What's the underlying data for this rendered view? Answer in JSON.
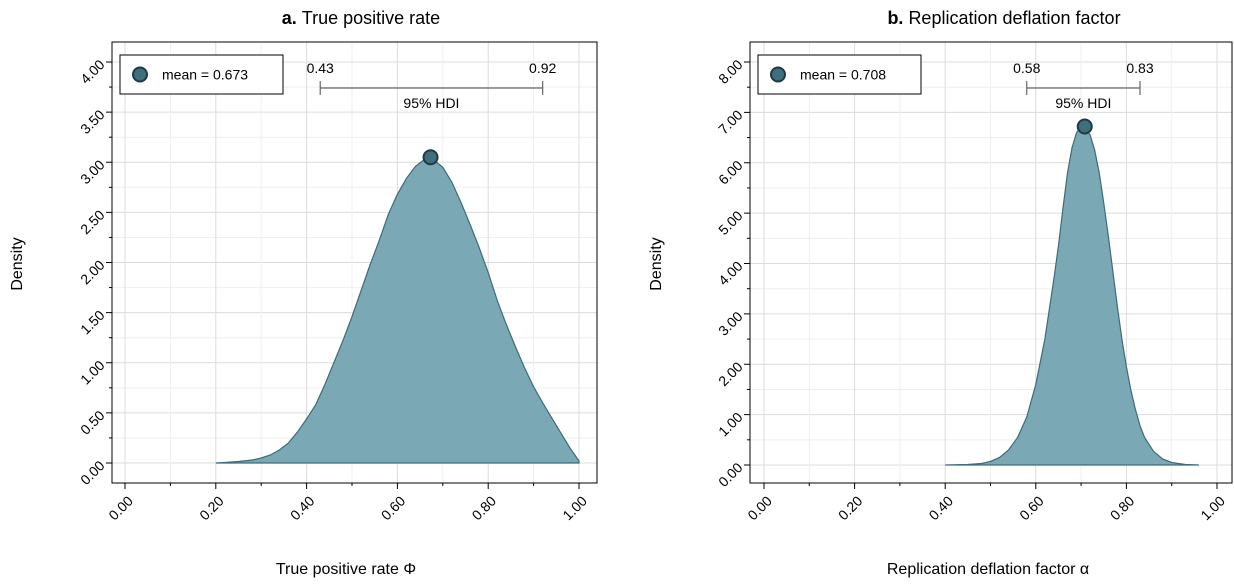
{
  "chart_data": [
    {
      "id": "a",
      "type": "area",
      "title_prefix": "a.",
      "title": "True positive rate",
      "xlabel": "True positive rate Φ",
      "ylabel": "Density",
      "xlim": [
        0,
        1
      ],
      "ylim": [
        0,
        4
      ],
      "xticks": [
        "0.00",
        "0.20",
        "0.40",
        "0.60",
        "0.80",
        "1.00"
      ],
      "yticks": [
        "0.00",
        "0.50",
        "1.00",
        "1.50",
        "2.00",
        "2.50",
        "3.00",
        "3.50",
        "4.00"
      ],
      "legend": {
        "label": "mean = 0.673",
        "placement": "top-left"
      },
      "mean": {
        "x": 0.673,
        "y": 3.05
      },
      "hdi": {
        "label": "95% HDI",
        "low": 0.43,
        "high": 0.92,
        "low_label": "0.43",
        "high_label": "0.92"
      },
      "curve": {
        "x": [
          0.2,
          0.22,
          0.25,
          0.28,
          0.3,
          0.32,
          0.34,
          0.36,
          0.38,
          0.4,
          0.42,
          0.44,
          0.46,
          0.48,
          0.5,
          0.52,
          0.54,
          0.56,
          0.58,
          0.6,
          0.62,
          0.64,
          0.66,
          0.673,
          0.7,
          0.72,
          0.74,
          0.76,
          0.78,
          0.8,
          0.82,
          0.84,
          0.86,
          0.88,
          0.9,
          0.92,
          0.94,
          0.96,
          0.98,
          1.0
        ],
        "y": [
          0.0,
          0.005,
          0.015,
          0.03,
          0.05,
          0.08,
          0.13,
          0.2,
          0.31,
          0.44,
          0.58,
          0.78,
          1.0,
          1.22,
          1.46,
          1.72,
          1.98,
          2.22,
          2.48,
          2.68,
          2.84,
          2.96,
          3.03,
          3.05,
          2.95,
          2.8,
          2.6,
          2.38,
          2.15,
          1.9,
          1.62,
          1.38,
          1.16,
          0.95,
          0.76,
          0.6,
          0.45,
          0.3,
          0.15,
          0.02
        ]
      },
      "colors": {
        "fill": "#7aa8b5",
        "stroke": "#3d6b78",
        "point": "#3f6e7c"
      }
    },
    {
      "id": "b",
      "type": "area",
      "title_prefix": "b.",
      "title": "Replication deflation factor",
      "xlabel": "Replication deflation factor α",
      "ylabel": "Density",
      "xlim": [
        0,
        1
      ],
      "ylim": [
        0,
        8
      ],
      "xticks": [
        "0.00",
        "0.20",
        "0.40",
        "0.60",
        "0.80",
        "1.00"
      ],
      "yticks": [
        "0.00",
        "1.00",
        "2.00",
        "3.00",
        "4.00",
        "5.00",
        "6.00",
        "7.00",
        "8.00"
      ],
      "legend": {
        "label": "mean = 0.708",
        "placement": "top-left"
      },
      "mean": {
        "x": 0.708,
        "y": 6.72
      },
      "hdi": {
        "label": "95% HDI",
        "low": 0.58,
        "high": 0.83,
        "low_label": "0.58",
        "high_label": "0.83"
      },
      "curve": {
        "x": [
          0.4,
          0.45,
          0.48,
          0.5,
          0.52,
          0.54,
          0.56,
          0.58,
          0.6,
          0.62,
          0.64,
          0.65,
          0.66,
          0.67,
          0.68,
          0.69,
          0.7,
          0.708,
          0.72,
          0.73,
          0.74,
          0.75,
          0.76,
          0.77,
          0.78,
          0.79,
          0.8,
          0.81,
          0.82,
          0.83,
          0.84,
          0.86,
          0.88,
          0.9,
          0.93,
          0.96
        ],
        "y": [
          0.0,
          0.01,
          0.03,
          0.07,
          0.15,
          0.3,
          0.55,
          0.95,
          1.6,
          2.5,
          3.7,
          4.35,
          5.1,
          5.8,
          6.3,
          6.6,
          6.72,
          6.7,
          6.55,
          6.25,
          5.8,
          5.2,
          4.55,
          3.85,
          3.15,
          2.5,
          1.95,
          1.48,
          1.1,
          0.78,
          0.55,
          0.27,
          0.12,
          0.05,
          0.01,
          0.0
        ]
      },
      "colors": {
        "fill": "#7aa8b5",
        "stroke": "#3d6b78",
        "point": "#3f6e7c"
      }
    }
  ]
}
